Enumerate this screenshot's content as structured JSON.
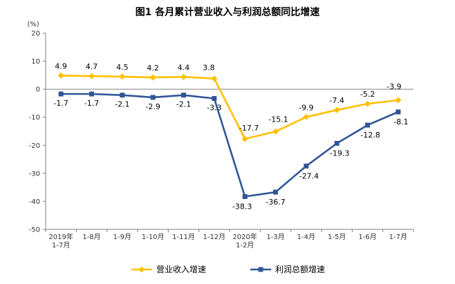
{
  "chart_data": {
    "type": "line",
    "title": "图1  各月累计营业收入与利润总额同比增速",
    "ylabel": "(%)",
    "ylim": [
      -50,
      20
    ],
    "yticks": [
      20,
      10,
      0,
      -10,
      -20,
      -30,
      -40,
      -50
    ],
    "categories": [
      [
        "2019年",
        "1-7月"
      ],
      [
        "1-8月"
      ],
      [
        "1-9月"
      ],
      [
        "1-10月"
      ],
      [
        "1-11月"
      ],
      [
        "1-12月"
      ],
      [
        "2020年",
        "1-2月"
      ],
      [
        "1-3月"
      ],
      [
        "1-4月"
      ],
      [
        "1-5月"
      ],
      [
        "1-6月"
      ],
      [
        "1-7月"
      ]
    ],
    "series": [
      {
        "name": "营业收入增速",
        "color": "#FFC000",
        "marker": "diamond",
        "values": [
          4.9,
          4.7,
          4.5,
          4.2,
          4.4,
          3.8,
          -17.7,
          -15.1,
          -9.9,
          -7.4,
          -5.2,
          -3.9
        ],
        "labels": [
          "4.9",
          "4.7",
          "4.5",
          "4.2",
          "4.4",
          "3.8",
          "-17.7",
          "-15.1",
          "-9.9",
          "-7.4",
          "-5.2",
          "-3.9"
        ]
      },
      {
        "name": "利润总额增速",
        "color": "#2F5597",
        "marker": "square",
        "values": [
          -1.7,
          -1.7,
          -2.1,
          -2.9,
          -2.1,
          -3.3,
          -38.3,
          -36.7,
          -27.4,
          -19.3,
          -12.8,
          -8.1
        ],
        "labels": [
          "-1.7",
          "-1.7",
          "-2.1",
          "-2.9",
          "-2.1",
          "-3.3",
          "-38.3",
          "-36.7",
          "-27.4",
          "-19.3",
          "-12.8",
          "-8.1"
        ]
      }
    ],
    "legend_position": "bottom"
  }
}
